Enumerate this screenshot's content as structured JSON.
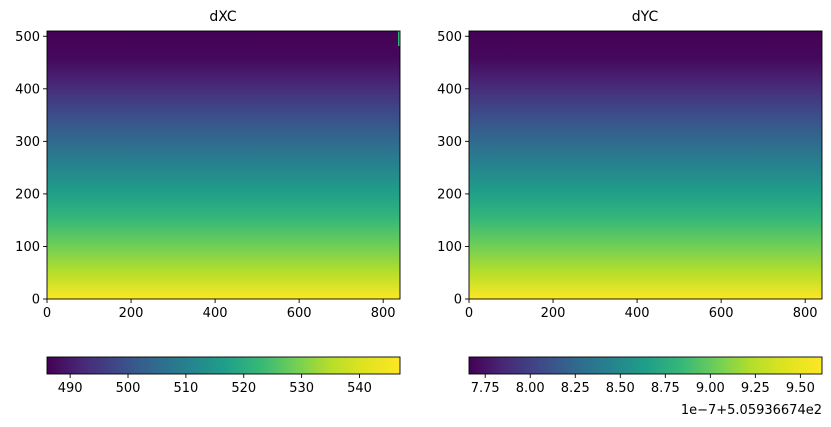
{
  "chart_data": [
    {
      "type": "heatmap",
      "title": "dXC",
      "xlabel": "",
      "ylabel": "",
      "xlim": [
        0,
        840
      ],
      "ylim": [
        0,
        510
      ],
      "x_ticks": [
        "0",
        "200",
        "400",
        "600",
        "800"
      ],
      "y_ticks": [
        "0",
        "100",
        "200",
        "300",
        "400",
        "500"
      ],
      "colormap": "viridis",
      "gradient": "vertical",
      "value_at_y_min": 547,
      "value_at_y_max": 486,
      "colorbar": {
        "orientation": "horizontal",
        "range": [
          486,
          547
        ],
        "ticks": [
          "490",
          "500",
          "510",
          "520",
          "530",
          "540"
        ],
        "offset_label": ""
      }
    },
    {
      "type": "heatmap",
      "title": "dYC",
      "xlabel": "",
      "ylabel": "",
      "xlim": [
        0,
        840
      ],
      "ylim": [
        0,
        510
      ],
      "x_ticks": [
        "0",
        "200",
        "400",
        "600",
        "800"
      ],
      "y_ticks": [
        "0",
        "100",
        "200",
        "300",
        "400",
        "500"
      ],
      "colormap": "viridis",
      "gradient": "vertical",
      "value_at_y_min": 9.62,
      "value_at_y_max": 7.66,
      "colorbar": {
        "orientation": "horizontal",
        "range": [
          7.66,
          9.62
        ],
        "ticks": [
          "7.75",
          "8.00",
          "8.25",
          "8.50",
          "8.75",
          "9.00",
          "9.25",
          "9.50"
        ],
        "offset_label": "1e−7+5.05936674e2"
      }
    }
  ]
}
